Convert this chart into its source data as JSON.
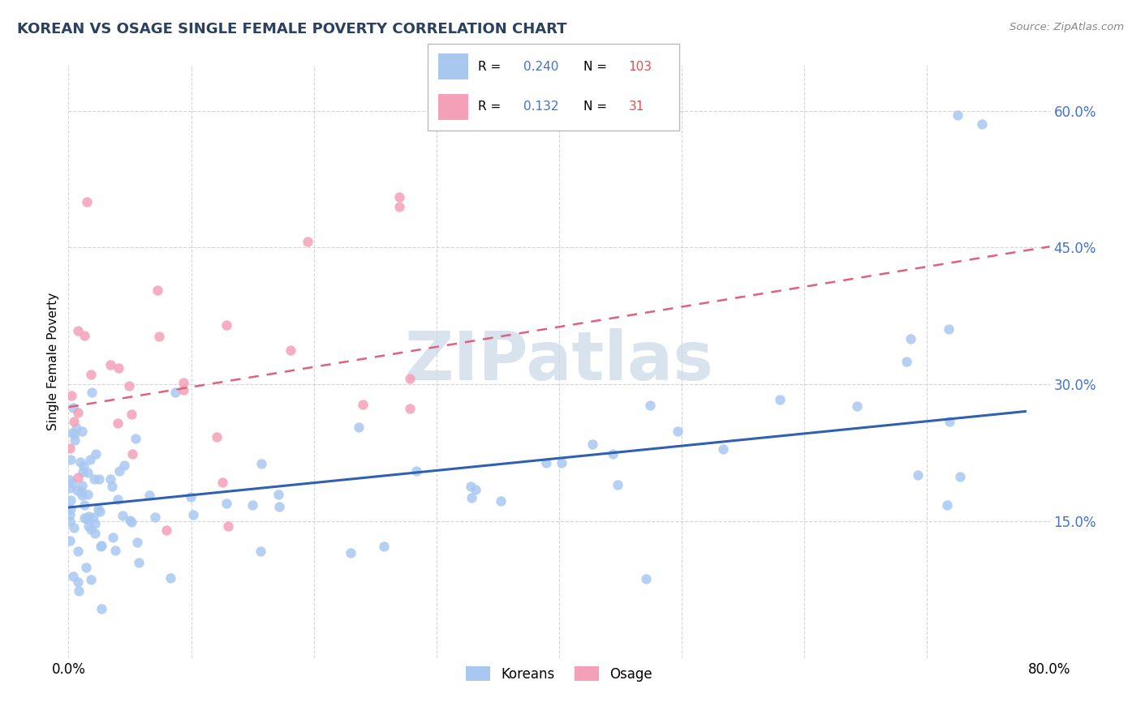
{
  "title": "KOREAN VS OSAGE SINGLE FEMALE POVERTY CORRELATION CHART",
  "source": "Source: ZipAtlas.com",
  "ylabel": "Single Female Poverty",
  "xlim": [
    0.0,
    0.8
  ],
  "ylim": [
    0.0,
    0.65
  ],
  "xtick_positions": [
    0.0,
    0.1,
    0.2,
    0.3,
    0.4,
    0.5,
    0.6,
    0.7,
    0.8
  ],
  "xticklabels": [
    "0.0%",
    "",
    "",
    "",
    "",
    "",
    "",
    "",
    "80.0%"
  ],
  "ytick_positions": [
    0.15,
    0.3,
    0.45,
    0.6
  ],
  "ytick_labels": [
    "15.0%",
    "30.0%",
    "45.0%",
    "60.0%"
  ],
  "korean_R": 0.24,
  "korean_N": 103,
  "osage_R": 0.132,
  "osage_N": 31,
  "korean_color": "#a8c8f0",
  "osage_color": "#f4a0b8",
  "korean_line_color": "#3060b0",
  "osage_line_color": "#e06080",
  "watermark_color": "#c8d8e8",
  "title_color": "#2c4060",
  "tick_color": "#4472c4",
  "legend_R_color": "#4472c4",
  "legend_N_color": "#e05050",
  "korean_line_intercept": 0.165,
  "korean_line_slope": 0.135,
  "osage_line_intercept": 0.275,
  "osage_line_slope": 0.22
}
